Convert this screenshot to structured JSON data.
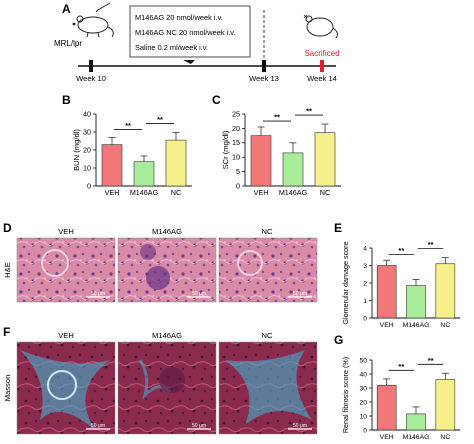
{
  "panels": {
    "a": "A",
    "b": "B",
    "c": "C",
    "d": "D",
    "e": "E",
    "f": "F",
    "g": "G"
  },
  "timeline": {
    "mouse_label": "MRL/lpr",
    "treatments": [
      "M146AG 20 nmol/week i.v.",
      "M146AG NC 20 nmol/week i.v.",
      "Saline 0.2 ml/week i.v."
    ],
    "weeks": [
      "Week 10",
      "Week 13",
      "Week 14"
    ],
    "end_label": "Sacrificed",
    "end_color": "#e8192c"
  },
  "histology": {
    "columns": [
      "VEH",
      "M146AG",
      "NC"
    ],
    "rows": [
      "H&E",
      "Masson"
    ],
    "scalebar": "50 μm"
  },
  "colors": {
    "VEH": "#f07878",
    "M146AG": "#a8ec9a",
    "NC": "#f6f08a"
  },
  "significance": "**",
  "chart_data": [
    {
      "id": "bun",
      "type": "bar",
      "categories": [
        "VEH",
        "M146AG",
        "NC"
      ],
      "values": [
        23,
        13.5,
        25.5
      ],
      "errors": [
        4,
        3.2,
        4.2
      ],
      "ylabel": "BUN (mg/dl)",
      "ylim": [
        0,
        40
      ],
      "yticks": [
        0,
        10,
        20,
        30,
        40
      ],
      "brackets": [
        [
          0,
          1
        ],
        [
          1,
          2
        ]
      ]
    },
    {
      "id": "scr",
      "type": "bar",
      "categories": [
        "VEH",
        "M146AG",
        "NC"
      ],
      "values": [
        17.5,
        11.5,
        18.5
      ],
      "errors": [
        3,
        3.5,
        3
      ],
      "ylabel": "SCr (mg/dl)",
      "ylim": [
        0,
        25
      ],
      "yticks": [
        0,
        5,
        10,
        15,
        20,
        25
      ],
      "brackets": [
        [
          0,
          1
        ],
        [
          1,
          2
        ]
      ]
    },
    {
      "id": "glomerular",
      "type": "bar",
      "categories": [
        "VEH",
        "M146AG",
        "NC"
      ],
      "values": [
        3.0,
        1.85,
        3.1
      ],
      "errors": [
        0.3,
        0.35,
        0.35
      ],
      "ylabel": "Glomerular damage score",
      "ylim": [
        0,
        4
      ],
      "yticks": [
        0,
        1,
        2,
        3,
        4
      ],
      "brackets": [
        [
          0,
          1
        ],
        [
          1,
          2
        ]
      ]
    },
    {
      "id": "fibrosis",
      "type": "bar",
      "categories": [
        "VEH",
        "M146AG",
        "NC"
      ],
      "values": [
        32,
        11.5,
        36
      ],
      "errors": [
        4.5,
        5,
        4.5
      ],
      "ylabel": "Renal fibrosis score (%)",
      "ylim": [
        0,
        50
      ],
      "yticks": [
        0,
        10,
        20,
        30,
        40,
        50
      ],
      "brackets": [
        [
          0,
          1
        ],
        [
          1,
          2
        ]
      ]
    }
  ]
}
